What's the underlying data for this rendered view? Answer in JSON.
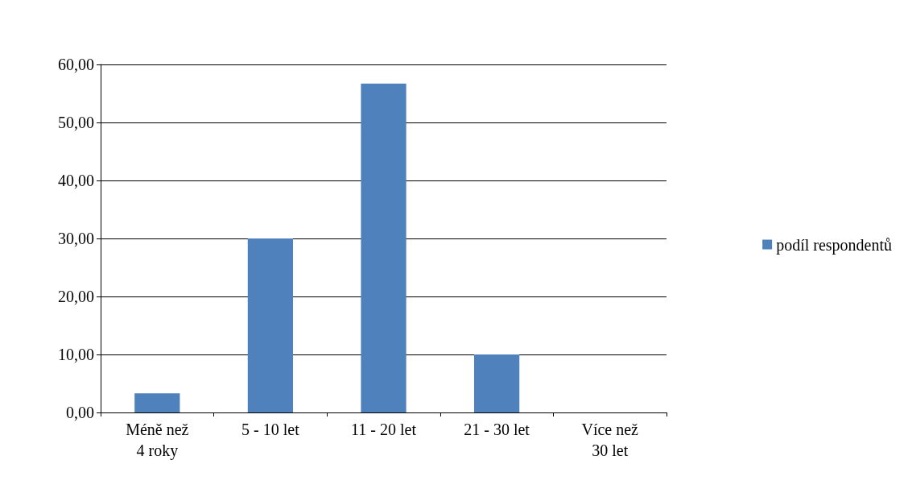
{
  "chart_data": {
    "type": "bar",
    "categories": [
      "Méně než\n4 roky",
      "5 - 10 let",
      "11 - 20 let",
      "21 - 30 let",
      "Více než\n30 let"
    ],
    "series": [
      {
        "name": "podíl respondentů",
        "color": "#4f81bd",
        "values": [
          3.3,
          30,
          56.7,
          10,
          0
        ]
      }
    ],
    "ylim": [
      0,
      60
    ],
    "yticks": [
      {
        "value": 0,
        "label": "0,00"
      },
      {
        "value": 10,
        "label": "10,00"
      },
      {
        "value": 20,
        "label": "20,00"
      },
      {
        "value": 30,
        "label": "30,00"
      },
      {
        "value": 40,
        "label": "40,00"
      },
      {
        "value": 50,
        "label": "50,00"
      },
      {
        "value": 60,
        "label": "60,00"
      }
    ],
    "grid": "y",
    "legend": "right"
  }
}
